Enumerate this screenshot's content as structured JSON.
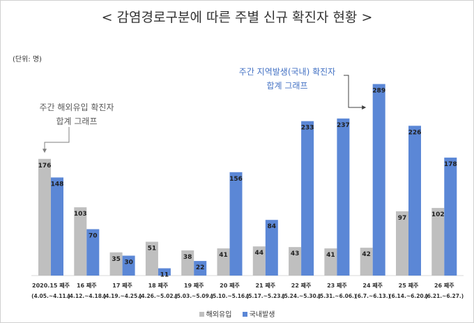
{
  "chart_data": {
    "type": "bar",
    "title": "< 감염경로구분에 따른 주별 신규 확진자 현황 >",
    "unit_label": "(단위: 명)",
    "categories": [
      {
        "week": "2020.15 째주",
        "range": "(4.05.~4.11.)"
      },
      {
        "week": "16 째주",
        "range": "(4.12.~4.18.)"
      },
      {
        "week": "17 째주",
        "range": "(4.19.~4.25.)"
      },
      {
        "week": "18 째주",
        "range": "(4.26.~5.02.)"
      },
      {
        "week": "19 째주",
        "range": "(5.03.~5.09.)"
      },
      {
        "week": "20 째주",
        "range": "(5.10.~5.16.)"
      },
      {
        "week": "21 째주",
        "range": "(5.17.~5.23.)"
      },
      {
        "week": "22 째주",
        "range": "(5.24.~5.30.)"
      },
      {
        "week": "23 째주",
        "range": "(5.31.~6.06.)"
      },
      {
        "week": "24 째주",
        "range": "(6.7.~6.13.)"
      },
      {
        "week": "25 째주",
        "range": "(6.14.~6.20.)"
      },
      {
        "week": "26 째주",
        "range": "(6.21.~6.27.)"
      }
    ],
    "series": [
      {
        "name": "해외유입",
        "color": "#bfbfbf",
        "values": [
          176,
          103,
          35,
          51,
          38,
          41,
          44,
          43,
          41,
          42,
          97,
          102
        ]
      },
      {
        "name": "국내발생",
        "color": "#5b87d6",
        "values": [
          148,
          70,
          30,
          11,
          22,
          156,
          84,
          233,
          237,
          289,
          226,
          178
        ]
      }
    ],
    "ylim": [
      0,
      300
    ],
    "grid": false,
    "legend_position": "bottom",
    "annotations": [
      {
        "text_lines": [
          "주간 해외유입 확진자",
          "합계 그래프"
        ],
        "color": "#595959"
      },
      {
        "text_lines": [
          "주간 지역발생(국내) 확진자",
          "합계 그래프"
        ],
        "color": "#4472c4"
      }
    ]
  }
}
